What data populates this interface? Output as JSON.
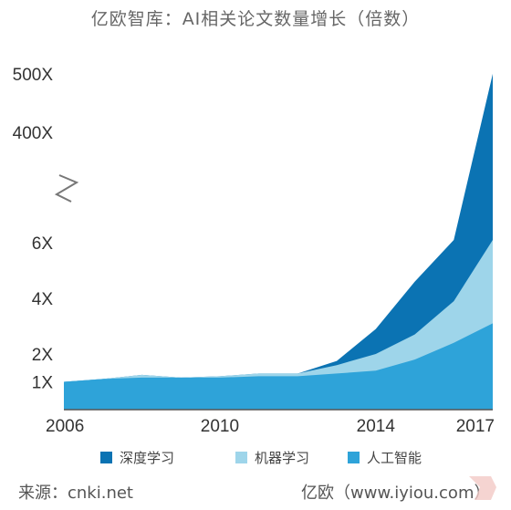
{
  "chart_data": {
    "type": "area",
    "stacked": true,
    "title": "亿欧智库：AI相关论文数量增长（倍数）",
    "xlabel": "",
    "ylabel": "",
    "x": [
      2006,
      2007,
      2008,
      2009,
      2010,
      2011,
      2012,
      2013,
      2014,
      2015,
      2016,
      2017
    ],
    "x_ticks": [
      "2006",
      "2010",
      "2014",
      "2017"
    ],
    "y_ticks": [
      "1X",
      "2X",
      "4X",
      "6X",
      "400X",
      "500X"
    ],
    "y_axis_break": true,
    "series": [
      {
        "name": "人工智能",
        "color": "#2ea3d9",
        "values": [
          1.0,
          1.1,
          1.15,
          1.15,
          1.15,
          1.2,
          1.2,
          1.3,
          1.4,
          1.8,
          2.4,
          3.1
        ]
      },
      {
        "name": "机器学习",
        "color": "#9ed5ea",
        "values": [
          0.0,
          0.0,
          0.1,
          0.0,
          0.05,
          0.1,
          0.1,
          0.3,
          0.6,
          0.9,
          1.5,
          3.0
        ]
      },
      {
        "name": "深度学习",
        "color": "#0b73b3",
        "values": [
          0.0,
          0.0,
          0.0,
          0.0,
          0.0,
          0.0,
          0.0,
          0.15,
          0.9,
          1.9,
          2.2,
          494.0
        ]
      }
    ],
    "legend": [
      "深度学习",
      "机器学习",
      "人工智能"
    ],
    "legend_position": "bottom",
    "grid": false
  },
  "footer": {
    "source": "来源：cnki.net",
    "brand": "亿欧（www.iyiou.com）"
  }
}
